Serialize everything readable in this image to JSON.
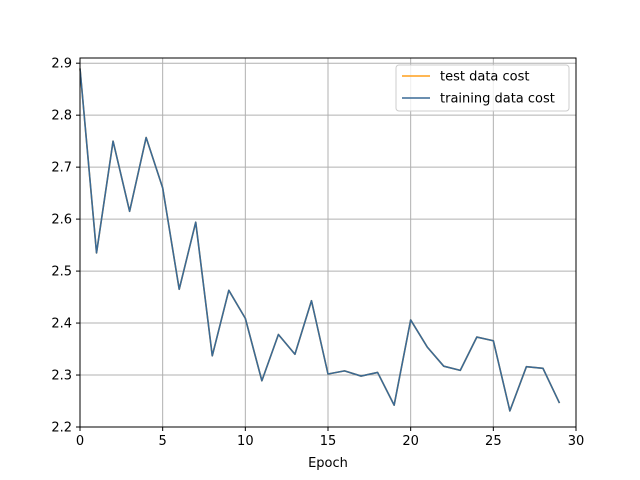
{
  "chart_data": {
    "type": "line",
    "title": "",
    "xlabel": "Epoch",
    "ylabel": "",
    "xlim": [
      0,
      30
    ],
    "ylim": [
      2.2,
      2.91
    ],
    "xticks": [
      0,
      5,
      10,
      15,
      20,
      25,
      30
    ],
    "yticks": [
      2.2,
      2.3,
      2.4,
      2.5,
      2.6,
      2.7,
      2.8,
      2.9
    ],
    "grid": true,
    "legend_position": "top-right",
    "series": [
      {
        "name": "test data cost",
        "color": "#ff9f1c",
        "x": [
          0,
          1,
          2,
          3,
          4,
          5,
          6,
          7,
          8,
          9,
          10,
          11,
          12,
          13,
          14,
          15,
          16,
          17,
          18,
          19,
          20,
          21,
          22,
          23,
          24,
          25,
          26,
          27,
          28,
          29
        ],
        "values": [
          2.89,
          2.535,
          2.75,
          2.615,
          2.757,
          2.66,
          2.465,
          2.594,
          2.337,
          2.463,
          2.409,
          2.289,
          2.378,
          2.34,
          2.443,
          2.302,
          2.308,
          2.298,
          2.305,
          2.242,
          2.406,
          2.354,
          2.317,
          2.309,
          2.373,
          2.366,
          2.231,
          2.316,
          2.313,
          2.246
        ]
      },
      {
        "name": "training data cost",
        "color": "#3a6a96",
        "x": [
          0,
          1,
          2,
          3,
          4,
          5,
          6,
          7,
          8,
          9,
          10,
          11,
          12,
          13,
          14,
          15,
          16,
          17,
          18,
          19,
          20,
          21,
          22,
          23,
          24,
          25,
          26,
          27,
          28,
          29
        ],
        "values": [
          2.89,
          2.535,
          2.75,
          2.615,
          2.757,
          2.66,
          2.465,
          2.594,
          2.337,
          2.463,
          2.409,
          2.289,
          2.378,
          2.34,
          2.443,
          2.302,
          2.308,
          2.298,
          2.305,
          2.242,
          2.406,
          2.354,
          2.317,
          2.309,
          2.373,
          2.366,
          2.231,
          2.316,
          2.313,
          2.246
        ]
      }
    ]
  }
}
